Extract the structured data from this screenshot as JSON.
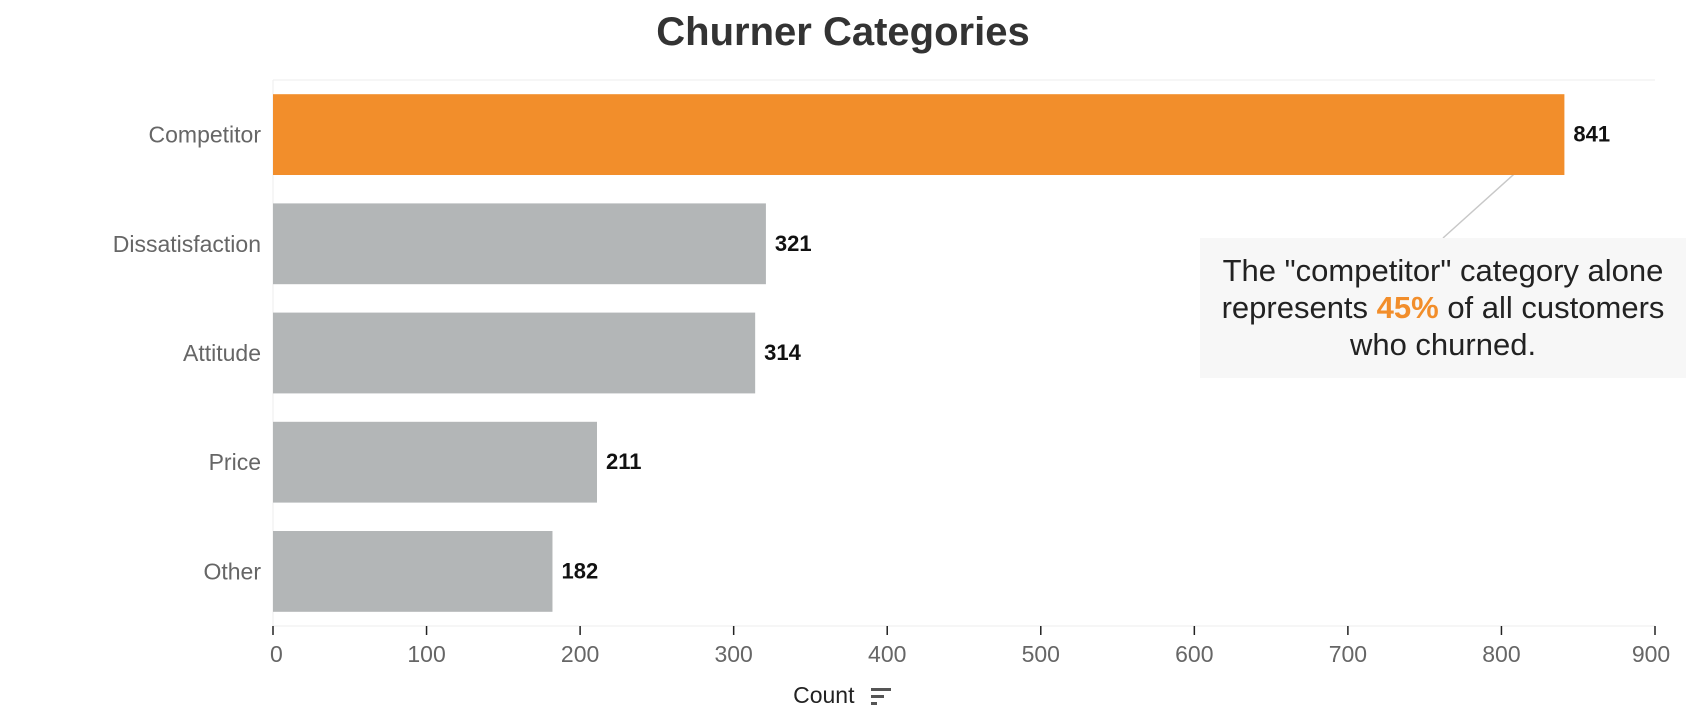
{
  "chart_data": {
    "type": "bar",
    "orientation": "horizontal",
    "title": "Churner Categories",
    "xlabel": "Count",
    "ylabel": "",
    "categories": [
      "Competitor",
      "Dissatisfaction",
      "Attitude",
      "Price",
      "Other"
    ],
    "values": [
      841,
      321,
      314,
      211,
      182
    ],
    "highlight_category": "Competitor",
    "xlim": [
      0,
      900
    ],
    "x_ticks": [
      0,
      100,
      200,
      300,
      400,
      500,
      600,
      700,
      800,
      900
    ],
    "grid": false,
    "legend": "none",
    "colors": {
      "highlight": "#f28e2b",
      "default": "#b3b6b7"
    },
    "annotation": {
      "target": "Competitor",
      "text_before": "The \"competitor\" category alone represents ",
      "highlight_text": "45%",
      "text_after": " of all customers who churned."
    }
  },
  "icons": {
    "axis_sort": "sort-descending-icon"
  }
}
